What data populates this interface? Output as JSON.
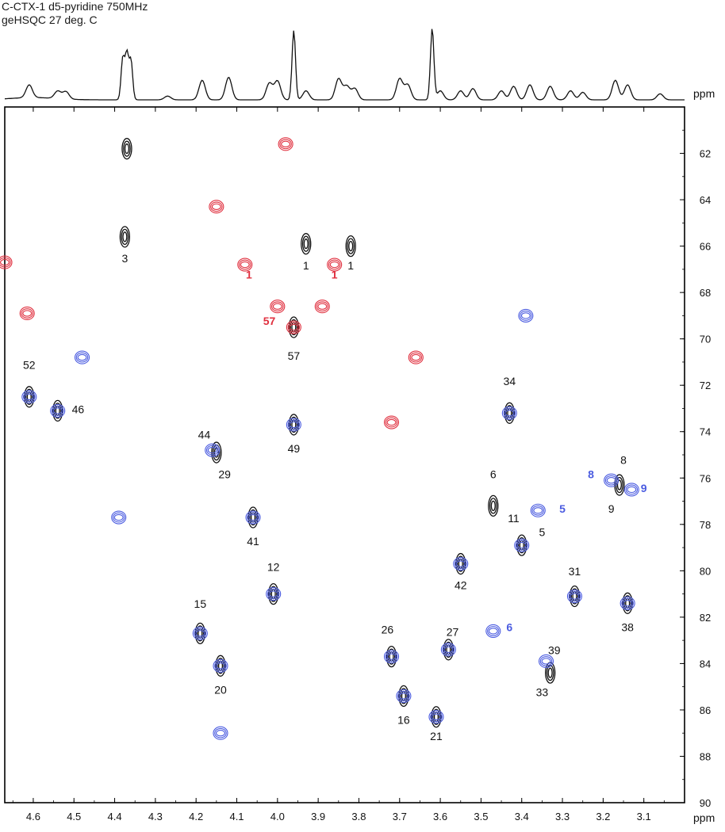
{
  "header": {
    "title_line1": "C-CTX-1 d5-pyridine 750MHz",
    "title_line2": "geHSQC 27 deg. C"
  },
  "chart_data": {
    "type": "scatter",
    "subtype": "2D NMR contour plot (HSQC) with 1D projection",
    "xlabel": "ppm",
    "ylabel": "ppm",
    "projection_xlabel": "ppm",
    "xlim": [
      4.67,
      3.0
    ],
    "ylim": [
      90,
      60
    ],
    "x_reversed": true,
    "x_ticks": [
      4.6,
      4.5,
      4.4,
      4.3,
      4.2,
      4.1,
      4.0,
      3.9,
      3.8,
      3.7,
      3.6,
      3.5,
      3.4,
      3.3,
      3.2,
      3.1
    ],
    "y_ticks": [
      62,
      64,
      66,
      68,
      70,
      72,
      74,
      76,
      78,
      80,
      82,
      84,
      86,
      88,
      90
    ],
    "colors": {
      "black": "#111111",
      "blue": "#4a5be0",
      "red": "#e0303f",
      "axis": "#000000"
    },
    "series": [
      {
        "name": "",
        "color": "black",
        "points": [
          [
            4.37,
            61.8
          ],
          [
            4.375,
            65.6
          ],
          [
            3.93,
            65.9
          ],
          [
            3.82,
            66.0
          ],
          [
            3.96,
            69.5
          ],
          [
            4.61,
            72.5
          ],
          [
            4.54,
            73.1
          ],
          [
            3.43,
            73.2
          ],
          [
            3.96,
            73.7
          ],
          [
            4.15,
            74.9
          ],
          [
            3.47,
            77.2
          ],
          [
            4.06,
            77.7
          ],
          [
            3.4,
            78.9
          ],
          [
            3.16,
            76.3
          ],
          [
            3.55,
            79.7
          ],
          [
            4.01,
            81.0
          ],
          [
            4.19,
            82.7
          ],
          [
            3.27,
            81.1
          ],
          [
            3.14,
            81.4
          ],
          [
            4.14,
            84.1
          ],
          [
            3.72,
            83.7
          ],
          [
            3.58,
            83.4
          ],
          [
            3.33,
            84.4
          ],
          [
            3.69,
            85.4
          ],
          [
            3.61,
            86.3
          ]
        ]
      },
      {
        "name": "",
        "color": "blue",
        "points": [
          [
            4.61,
            72.5
          ],
          [
            4.54,
            73.1
          ],
          [
            3.43,
            73.2
          ],
          [
            3.96,
            73.7
          ],
          [
            4.16,
            74.8
          ],
          [
            4.06,
            77.7
          ],
          [
            3.4,
            78.9
          ],
          [
            3.55,
            79.7
          ],
          [
            4.01,
            81.0
          ],
          [
            4.19,
            82.7
          ],
          [
            3.27,
            81.1
          ],
          [
            3.14,
            81.4
          ],
          [
            4.14,
            84.1
          ],
          [
            3.72,
            83.7
          ],
          [
            3.58,
            83.4
          ],
          [
            3.34,
            83.9
          ],
          [
            3.69,
            85.4
          ],
          [
            3.61,
            86.3
          ],
          [
            3.18,
            76.1
          ],
          [
            3.13,
            76.5
          ],
          [
            3.36,
            77.4
          ],
          [
            3.47,
            82.6
          ],
          [
            4.48,
            70.8
          ],
          [
            4.39,
            77.7
          ],
          [
            4.14,
            87.0
          ],
          [
            3.39,
            69.0
          ]
        ]
      },
      {
        "name": "",
        "color": "red",
        "points": [
          [
            4.67,
            66.7
          ],
          [
            4.615,
            68.9
          ],
          [
            4.15,
            64.3
          ],
          [
            3.98,
            61.6
          ],
          [
            4.08,
            66.8
          ],
          [
            3.86,
            66.8
          ],
          [
            4.0,
            68.6
          ],
          [
            3.89,
            68.6
          ],
          [
            3.96,
            69.5
          ],
          [
            3.66,
            70.8
          ],
          [
            3.72,
            73.6
          ]
        ]
      }
    ],
    "annotations": [
      {
        "text": "3",
        "color": "black",
        "x": 4.375,
        "y": 66.7
      },
      {
        "text": "1",
        "color": "black",
        "x": 3.93,
        "y": 67.0
      },
      {
        "text": "1",
        "color": "black",
        "x": 3.82,
        "y": 67.0
      },
      {
        "text": "1",
        "color": "red",
        "x": 4.07,
        "y": 67.4
      },
      {
        "text": "1",
        "color": "red",
        "x": 3.86,
        "y": 67.4
      },
      {
        "text": "57",
        "color": "red",
        "x": 4.02,
        "y": 69.4
      },
      {
        "text": "57",
        "color": "black",
        "x": 3.96,
        "y": 70.9
      },
      {
        "text": "52",
        "color": "black",
        "x": 4.61,
        "y": 71.3
      },
      {
        "text": "46",
        "color": "black",
        "x": 4.49,
        "y": 73.2
      },
      {
        "text": "34",
        "color": "black",
        "x": 3.43,
        "y": 72.0
      },
      {
        "text": "49",
        "color": "black",
        "x": 3.96,
        "y": 74.9
      },
      {
        "text": "44",
        "color": "black",
        "x": 4.18,
        "y": 74.3
      },
      {
        "text": "29",
        "color": "black",
        "x": 4.13,
        "y": 76.0
      },
      {
        "text": "6",
        "color": "black",
        "x": 3.47,
        "y": 76.0
      },
      {
        "text": "8",
        "color": "blue",
        "x": 3.23,
        "y": 76.0
      },
      {
        "text": "8",
        "color": "black",
        "x": 3.15,
        "y": 75.4
      },
      {
        "text": "9",
        "color": "blue",
        "x": 3.1,
        "y": 76.6
      },
      {
        "text": "9",
        "color": "black",
        "x": 3.18,
        "y": 77.5
      },
      {
        "text": "5",
        "color": "blue",
        "x": 3.3,
        "y": 77.5
      },
      {
        "text": "11",
        "color": "black",
        "x": 3.42,
        "y": 77.9
      },
      {
        "text": "5",
        "color": "black",
        "x": 3.35,
        "y": 78.5
      },
      {
        "text": "41",
        "color": "black",
        "x": 4.06,
        "y": 78.9
      },
      {
        "text": "42",
        "color": "black",
        "x": 3.55,
        "y": 80.8
      },
      {
        "text": "12",
        "color": "black",
        "x": 4.01,
        "y": 80.0
      },
      {
        "text": "31",
        "color": "black",
        "x": 3.27,
        "y": 80.2
      },
      {
        "text": "15",
        "color": "black",
        "x": 4.19,
        "y": 81.6
      },
      {
        "text": "38",
        "color": "black",
        "x": 3.14,
        "y": 82.6
      },
      {
        "text": "6",
        "color": "blue",
        "x": 3.43,
        "y": 82.6
      },
      {
        "text": "27",
        "color": "black",
        "x": 3.57,
        "y": 82.8
      },
      {
        "text": "26",
        "color": "black",
        "x": 3.73,
        "y": 82.7
      },
      {
        "text": "39",
        "color": "black",
        "x": 3.32,
        "y": 83.6
      },
      {
        "text": "20",
        "color": "black",
        "x": 4.14,
        "y": 85.3
      },
      {
        "text": "33",
        "color": "black",
        "x": 3.35,
        "y": 85.4
      },
      {
        "text": "16",
        "color": "black",
        "x": 3.69,
        "y": 86.6
      },
      {
        "text": "21",
        "color": "black",
        "x": 3.61,
        "y": 87.3
      }
    ],
    "projection_peaks": [
      [
        4.61,
        0.17
      ],
      [
        4.54,
        0.1
      ],
      [
        4.52,
        0.1
      ],
      [
        4.38,
        0.55
      ],
      [
        4.37,
        0.6
      ],
      [
        4.36,
        0.52
      ],
      [
        4.27,
        0.05
      ],
      [
        4.185,
        0.26
      ],
      [
        4.12,
        0.3
      ],
      [
        4.02,
        0.22
      ],
      [
        4.0,
        0.25
      ],
      [
        3.96,
        0.92
      ],
      [
        3.93,
        0.12
      ],
      [
        3.85,
        0.28
      ],
      [
        3.83,
        0.18
      ],
      [
        3.81,
        0.15
      ],
      [
        3.7,
        0.28
      ],
      [
        3.68,
        0.2
      ],
      [
        3.62,
        0.95
      ],
      [
        3.6,
        0.12
      ],
      [
        3.55,
        0.12
      ],
      [
        3.52,
        0.15
      ],
      [
        3.45,
        0.12
      ],
      [
        3.42,
        0.18
      ],
      [
        3.38,
        0.2
      ],
      [
        3.33,
        0.18
      ],
      [
        3.28,
        0.12
      ],
      [
        3.25,
        0.1
      ],
      [
        3.17,
        0.26
      ],
      [
        3.14,
        0.2
      ],
      [
        3.06,
        0.08
      ]
    ]
  }
}
